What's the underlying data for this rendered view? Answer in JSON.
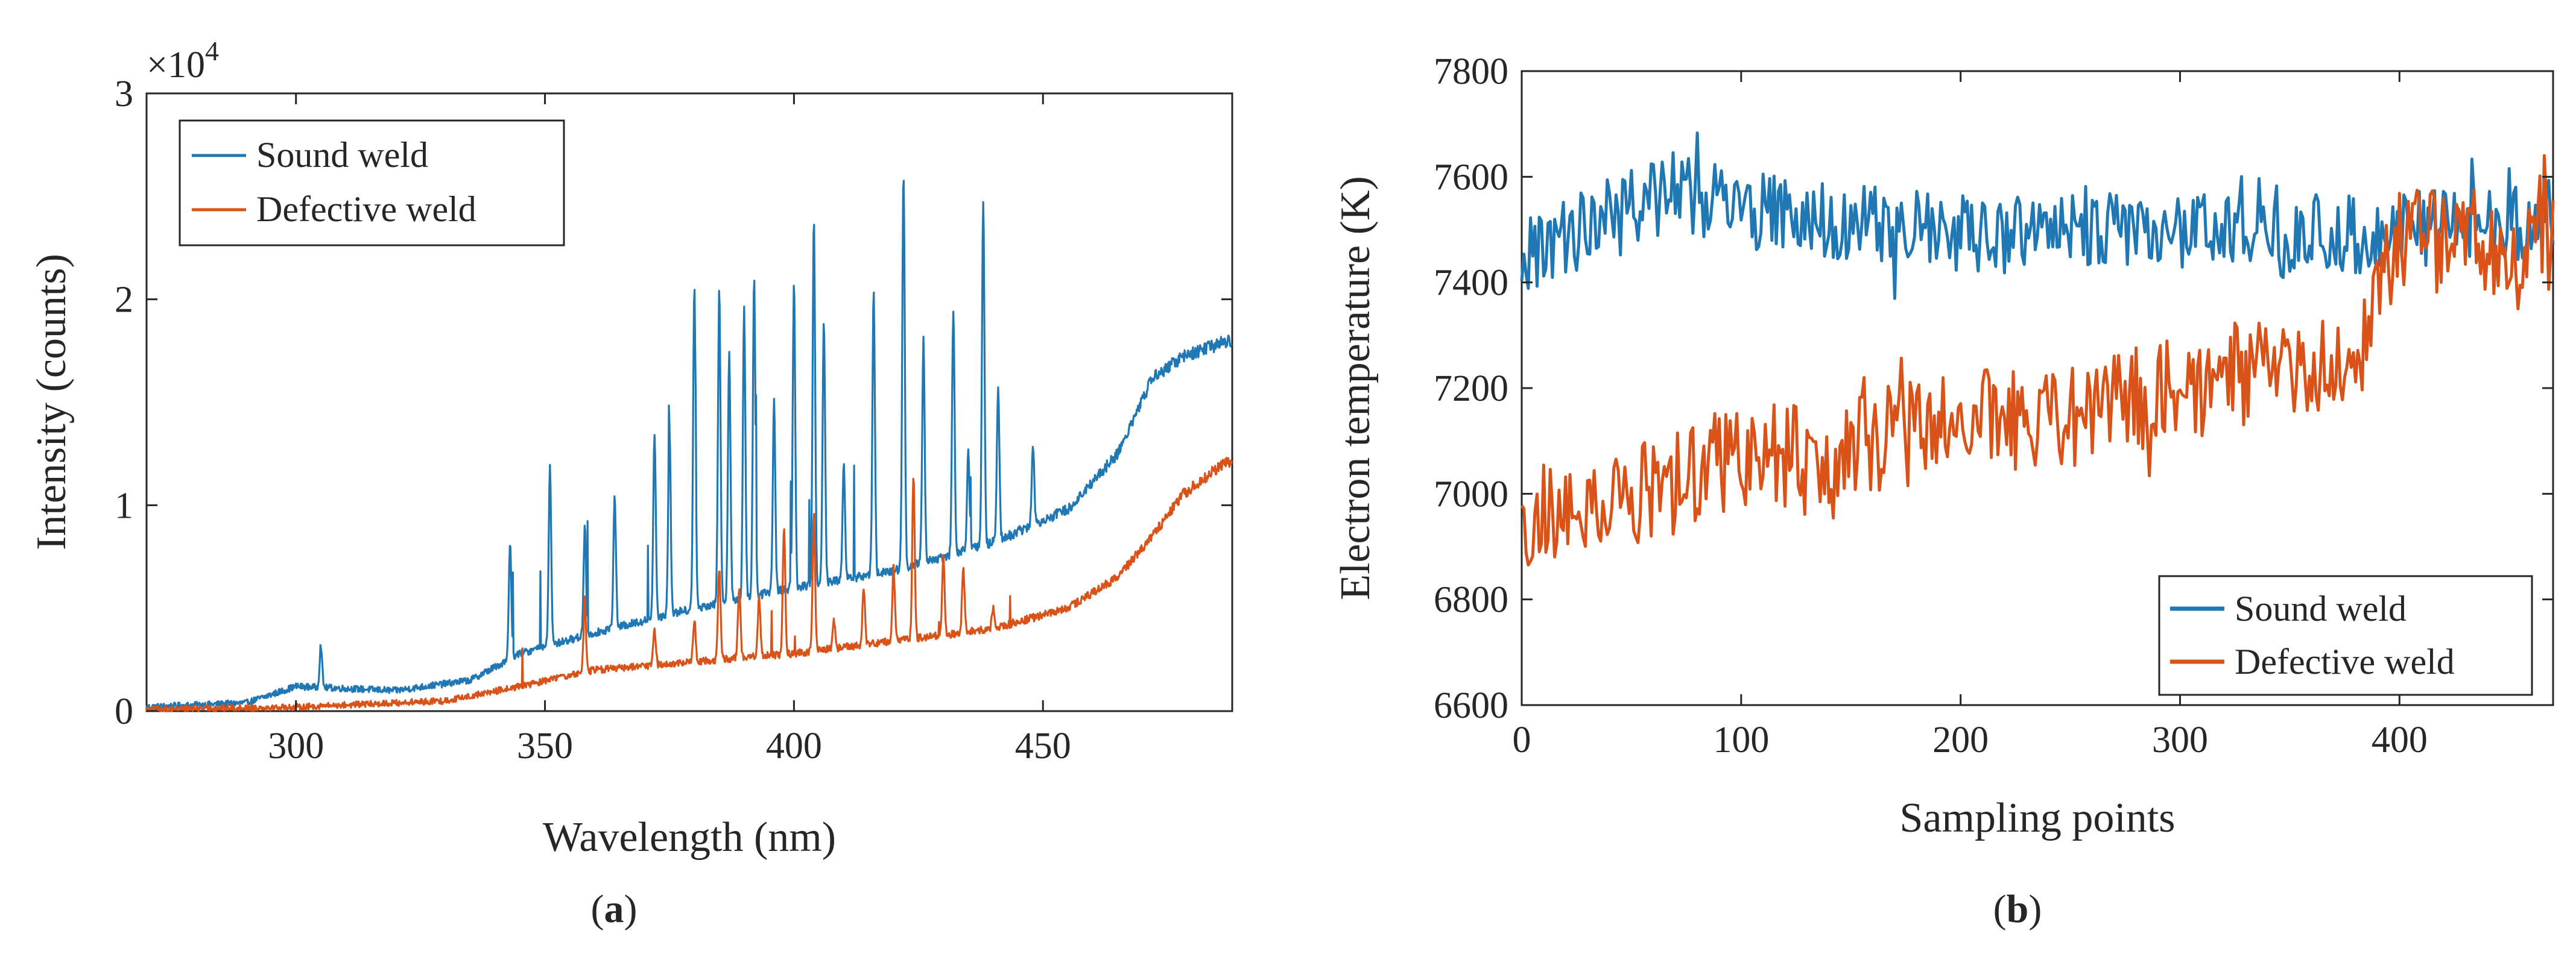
{
  "figure": {
    "panel_a_label": {
      "open": "(",
      "letter": "a",
      "close": ")"
    },
    "panel_b_label": {
      "open": "(",
      "letter": "b",
      "close": ")"
    }
  },
  "colors": {
    "sound": "#1f77b4",
    "defective": "#d95319",
    "axis": "#262626"
  },
  "chart_data": [
    {
      "type": "line",
      "panel": "a",
      "title": "",
      "xlabel": "Wavelength (nm)",
      "ylabel": "Intensity (counts)",
      "exponent_label": {
        "base": "×10",
        "power": "4"
      },
      "xlim": [
        270,
        488
      ],
      "ylim": [
        0,
        3
      ],
      "xticks": [
        300,
        350,
        400,
        450
      ],
      "xtick_labels": [
        "300",
        "350",
        "400",
        "450"
      ],
      "yticks": [
        0,
        1,
        2,
        3
      ],
      "ytick_labels": [
        "0",
        "1",
        "2",
        "3"
      ],
      "legend_position": "top-left",
      "series": [
        {
          "name": "Sound weld",
          "color": "#1f77b4",
          "baseline_x": [
            270,
            290,
            300,
            320,
            335,
            345,
            360,
            380,
            400,
            420,
            440,
            455,
            465,
            472,
            478,
            485,
            488
          ],
          "baseline_y": [
            0.02,
            0.04,
            0.12,
            0.1,
            0.15,
            0.28,
            0.38,
            0.5,
            0.6,
            0.68,
            0.82,
            0.98,
            1.25,
            1.62,
            1.72,
            1.78,
            1.8
          ],
          "peaks_x": [
            305,
            343,
            351,
            358,
            364,
            372,
            375,
            380,
            385,
            387,
            390,
            392,
            396,
            400,
            404,
            406,
            410,
            416,
            422,
            426,
            432,
            435,
            438,
            441,
            444,
            448
          ],
          "peaks_y": [
            0.32,
            0.82,
            1.18,
            0.9,
            1.05,
            1.35,
            1.38,
            2.05,
            2.05,
            1.75,
            1.95,
            2.1,
            1.5,
            2.1,
            2.4,
            1.9,
            1.2,
            2.05,
            2.62,
            1.8,
            1.95,
            1.25,
            2.48,
            1.58,
            0.85,
            1.3
          ]
        },
        {
          "name": "Defective weld",
          "color": "#d95319",
          "baseline_x": [
            270,
            300,
            330,
            345,
            360,
            380,
            400,
            420,
            440,
            455,
            465,
            472,
            478,
            485,
            488
          ],
          "baseline_y": [
            0.01,
            0.02,
            0.05,
            0.12,
            0.2,
            0.24,
            0.28,
            0.34,
            0.4,
            0.5,
            0.65,
            0.85,
            1.05,
            1.18,
            1.22
          ],
          "peaks_x": [
            358,
            372,
            380,
            385,
            389,
            393,
            398,
            404,
            408,
            414,
            420,
            424,
            430,
            434,
            440
          ],
          "peaks_y": [
            0.55,
            0.4,
            0.45,
            0.7,
            0.6,
            0.55,
            0.9,
            0.95,
            0.45,
            0.6,
            0.7,
            1.15,
            0.75,
            0.7,
            0.5
          ]
        }
      ]
    },
    {
      "type": "line",
      "panel": "b",
      "title": "",
      "xlabel": "Sampling points",
      "ylabel": "Electron temperature (K)",
      "xlim": [
        0,
        470
      ],
      "ylim": [
        6600,
        7800
      ],
      "xticks": [
        0,
        100,
        200,
        300,
        400
      ],
      "xtick_labels": [
        "0",
        "100",
        "200",
        "300",
        "400"
      ],
      "yticks": [
        6600,
        6800,
        7000,
        7200,
        7400,
        7600,
        7800
      ],
      "ytick_labels": [
        "6600",
        "6800",
        "7000",
        "7200",
        "7400",
        "7600",
        "7800"
      ],
      "legend_position": "bottom-right",
      "series": [
        {
          "name": "Sound weld",
          "color": "#1f77b4",
          "mean_x": [
            0,
            20,
            40,
            60,
            80,
            100,
            150,
            200,
            250,
            300,
            350,
            400,
            470
          ],
          "mean_y": [
            7440,
            7480,
            7540,
            7560,
            7560,
            7540,
            7510,
            7490,
            7490,
            7500,
            7480,
            7500,
            7520
          ],
          "noise": 75
        },
        {
          "name": "Defective weld",
          "color": "#d95319",
          "mean_x": [
            0,
            20,
            50,
            100,
            150,
            200,
            250,
            300,
            350,
            385,
            395,
            430,
            470
          ],
          "mean_y": [
            6950,
            6980,
            7000,
            7060,
            7090,
            7130,
            7150,
            7200,
            7240,
            7280,
            7480,
            7480,
            7470
          ],
          "noise": 100
        }
      ]
    }
  ]
}
